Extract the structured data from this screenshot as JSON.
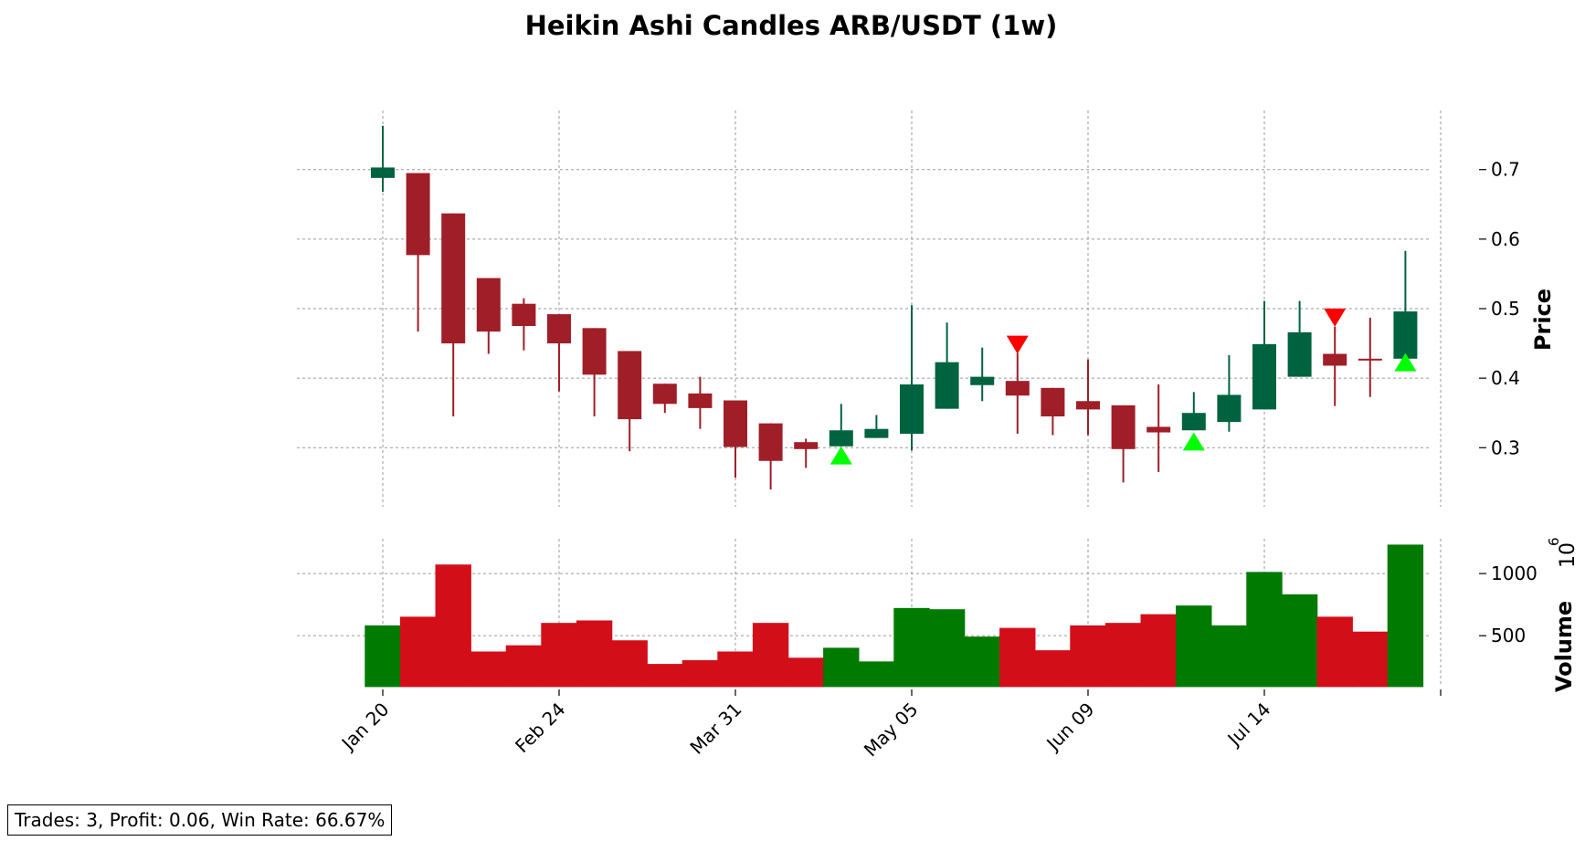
{
  "chart_data": {
    "type": "candlestick",
    "title": "Heikin Ashi Candles ARB/USDT (1w)",
    "price_label": "Price",
    "volume_label": "Volume",
    "volume_exponent": "10",
    "volume_exponent_power": "6",
    "price_ticks": [
      0.3,
      0.4,
      0.5,
      0.6,
      0.7
    ],
    "price_tick_labels": [
      "0.3",
      "0.4",
      "0.5",
      "0.6",
      "0.7"
    ],
    "price_ylim": [
      0.215,
      0.785
    ],
    "volume_ticks": [
      500,
      1000
    ],
    "volume_tick_labels": [
      "500",
      "1000"
    ],
    "volume_ylim": [
      90,
      1280
    ],
    "x_tick_labels": [
      {
        "index": 0,
        "label": "Jan 20"
      },
      {
        "index": 5,
        "label": "Feb 24"
      },
      {
        "index": 10,
        "label": "Mar 31"
      },
      {
        "index": 15,
        "label": "May 05"
      },
      {
        "index": 20,
        "label": "Jun 09"
      },
      {
        "index": 25,
        "label": "Jul 14"
      }
    ],
    "grid": true,
    "colors": {
      "up": "#006340",
      "down": "#a01e28",
      "volume_up": "#007a00",
      "volume_down": "#d20f19",
      "buy_marker": "#00ff00",
      "sell_marker": "#ff0000"
    },
    "candles": [
      {
        "open": 0.688,
        "close": 0.703,
        "high": 0.763,
        "low": 0.668,
        "volume": 580
      },
      {
        "open": 0.695,
        "close": 0.577,
        "high": 0.695,
        "low": 0.467,
        "volume": 650
      },
      {
        "open": 0.637,
        "close": 0.45,
        "high": 0.637,
        "low": 0.345,
        "volume": 1070
      },
      {
        "open": 0.544,
        "close": 0.467,
        "high": 0.544,
        "low": 0.435,
        "volume": 370
      },
      {
        "open": 0.507,
        "close": 0.475,
        "high": 0.515,
        "low": 0.44,
        "volume": 420
      },
      {
        "open": 0.492,
        "close": 0.45,
        "high": 0.492,
        "low": 0.381,
        "volume": 600
      },
      {
        "open": 0.472,
        "close": 0.405,
        "high": 0.472,
        "low": 0.345,
        "volume": 620
      },
      {
        "open": 0.439,
        "close": 0.341,
        "high": 0.439,
        "low": 0.295,
        "volume": 460
      },
      {
        "open": 0.392,
        "close": 0.363,
        "high": 0.392,
        "low": 0.35,
        "volume": 270
      },
      {
        "open": 0.378,
        "close": 0.357,
        "high": 0.402,
        "low": 0.327,
        "volume": 300
      },
      {
        "open": 0.368,
        "close": 0.301,
        "high": 0.368,
        "low": 0.257,
        "volume": 370
      },
      {
        "open": 0.335,
        "close": 0.281,
        "high": 0.335,
        "low": 0.24,
        "volume": 600
      },
      {
        "open": 0.308,
        "close": 0.298,
        "high": 0.313,
        "low": 0.271,
        "volume": 320
      },
      {
        "open": 0.302,
        "close": 0.325,
        "high": 0.363,
        "low": 0.302,
        "volume": 400
      },
      {
        "open": 0.314,
        "close": 0.327,
        "high": 0.347,
        "low": 0.314,
        "volume": 290
      },
      {
        "open": 0.32,
        "close": 0.391,
        "high": 0.505,
        "low": 0.296,
        "volume": 720
      },
      {
        "open": 0.356,
        "close": 0.423,
        "high": 0.48,
        "low": 0.356,
        "volume": 710
      },
      {
        "open": 0.39,
        "close": 0.402,
        "high": 0.444,
        "low": 0.367,
        "volume": 490
      },
      {
        "open": 0.396,
        "close": 0.375,
        "high": 0.436,
        "low": 0.32,
        "volume": 560
      },
      {
        "open": 0.386,
        "close": 0.345,
        "high": 0.386,
        "low": 0.318,
        "volume": 380
      },
      {
        "open": 0.367,
        "close": 0.355,
        "high": 0.427,
        "low": 0.318,
        "volume": 580
      },
      {
        "open": 0.361,
        "close": 0.298,
        "high": 0.361,
        "low": 0.25,
        "volume": 600
      },
      {
        "open": 0.33,
        "close": 0.322,
        "high": 0.391,
        "low": 0.265,
        "volume": 670
      },
      {
        "open": 0.325,
        "close": 0.35,
        "high": 0.38,
        "low": 0.325,
        "volume": 740
      },
      {
        "open": 0.337,
        "close": 0.376,
        "high": 0.433,
        "low": 0.323,
        "volume": 580
      },
      {
        "open": 0.355,
        "close": 0.449,
        "high": 0.511,
        "low": 0.355,
        "volume": 1010
      },
      {
        "open": 0.402,
        "close": 0.466,
        "high": 0.511,
        "low": 0.402,
        "volume": 830
      },
      {
        "open": 0.435,
        "close": 0.418,
        "high": 0.474,
        "low": 0.36,
        "volume": 650
      },
      {
        "open": 0.428,
        "close": 0.426,
        "high": 0.487,
        "low": 0.373,
        "volume": 530
      },
      {
        "open": 0.428,
        "close": 0.496,
        "high": 0.583,
        "low": 0.428,
        "volume": 1230
      }
    ],
    "signals": [
      {
        "index": 13,
        "type": "buy",
        "price": 0.289
      },
      {
        "index": 18,
        "type": "sell",
        "price": 0.448
      },
      {
        "index": 23,
        "type": "buy",
        "price": 0.309
      },
      {
        "index": 27,
        "type": "sell",
        "price": 0.487
      },
      {
        "index": 29,
        "type": "buy",
        "price": 0.423
      }
    ]
  },
  "summary": "Trades: 3, Profit: 0.06, Win Rate: 66.67%"
}
